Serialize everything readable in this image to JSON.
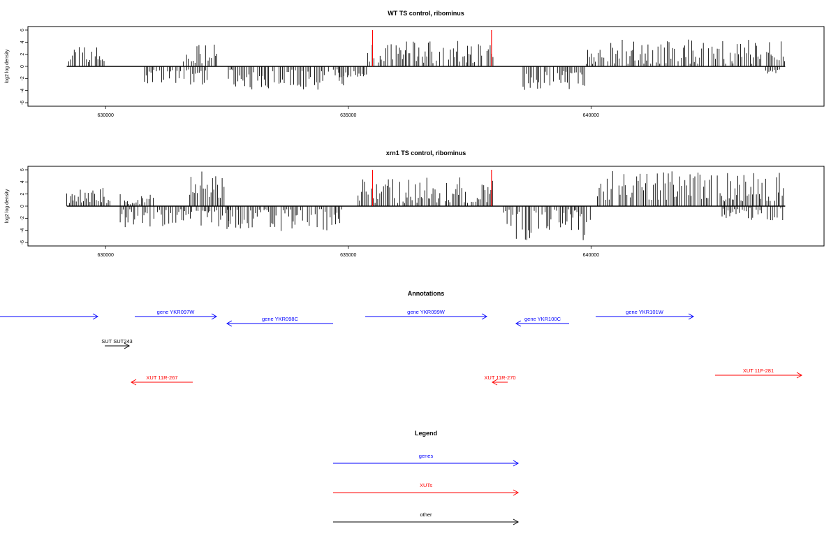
{
  "chart_data": [
    {
      "type": "bar",
      "panel": "coverage",
      "title": "WT TS control, ribominus",
      "ylabel": "log2 log density",
      "ylim": [
        -6,
        6
      ],
      "yticks": [
        "-6",
        "-4",
        "-2",
        "0",
        "2",
        "4",
        "6"
      ],
      "xlim": [
        628400,
        644800
      ],
      "xticks": [
        630000,
        635000,
        640000
      ],
      "xtick_labels": [
        "630000",
        "635000",
        "640000"
      ],
      "bar_color": "#000000",
      "marker_color": "#ff0000",
      "markers_x": [
        635500,
        637950
      ],
      "segments": [
        {
          "start": 629200,
          "end": 630000,
          "lo": 0.5,
          "hi": 3.5
        },
        {
          "start": 630800,
          "end": 632100,
          "lo": -3.0,
          "hi": -0.5
        },
        {
          "start": 631600,
          "end": 632300,
          "lo": 0.5,
          "hi": 3.7
        },
        {
          "start": 632500,
          "end": 634900,
          "lo": -4.0,
          "hi": -0.5
        },
        {
          "start": 634800,
          "end": 635400,
          "lo": -2.0,
          "hi": 0.8
        },
        {
          "start": 635400,
          "end": 638000,
          "lo": 0.5,
          "hi": 4.2
        },
        {
          "start": 638600,
          "end": 639900,
          "lo": -4.0,
          "hi": -0.8
        },
        {
          "start": 639900,
          "end": 644000,
          "lo": 0.4,
          "hi": 4.5
        },
        {
          "start": 643600,
          "end": 643900,
          "lo": -1.2,
          "hi": 0.5
        }
      ]
    },
    {
      "type": "bar",
      "panel": "coverage",
      "title": "xrn1 TS control, ribominus",
      "ylabel": "log2 log density",
      "ylim": [
        -6,
        6
      ],
      "yticks": [
        "-6",
        "-4",
        "-2",
        "0",
        "2",
        "4",
        "6"
      ],
      "xlim": [
        628400,
        644800
      ],
      "xticks": [
        630000,
        635000,
        640000
      ],
      "xtick_labels": [
        "630000",
        "635000",
        "640000"
      ],
      "bar_color": "#000000",
      "marker_color": "#ff0000",
      "markers_x": [
        635500,
        637950
      ],
      "segments": [
        {
          "start": 629200,
          "end": 630100,
          "lo": 0.5,
          "hi": 3.3
        },
        {
          "start": 630300,
          "end": 632600,
          "lo": -3.5,
          "hi": -0.5
        },
        {
          "start": 630300,
          "end": 631000,
          "lo": 0.3,
          "hi": 2.0
        },
        {
          "start": 631700,
          "end": 632500,
          "lo": 1.0,
          "hi": 6.0
        },
        {
          "start": 632500,
          "end": 634900,
          "lo": -4.2,
          "hi": -0.5
        },
        {
          "start": 635200,
          "end": 638000,
          "lo": 0.5,
          "hi": 5.0
        },
        {
          "start": 638200,
          "end": 640000,
          "lo": -5.8,
          "hi": -0.5
        },
        {
          "start": 640100,
          "end": 642500,
          "lo": 1.0,
          "hi": 5.8
        },
        {
          "start": 642600,
          "end": 644000,
          "lo": 0.8,
          "hi": 5.5
        },
        {
          "start": 642700,
          "end": 644000,
          "lo": -2.5,
          "hi": -0.3
        }
      ]
    }
  ],
  "annotations": {
    "title": "Annotations",
    "items": [
      {
        "name": "",
        "color": "#0000ff",
        "x1": 0,
        "x2": 140,
        "row": 0,
        "dir": "right",
        "label": ""
      },
      {
        "name": "gene-ykr097w",
        "color": "#0000ff",
        "x1": 193,
        "x2": 310,
        "row": 0,
        "dir": "right",
        "label": "gene YKR097W"
      },
      {
        "name": "gene-ykr098c",
        "color": "#0000ff",
        "x1": 325,
        "x2": 477,
        "row": 1,
        "dir": "left",
        "label": "gene YKR098C"
      },
      {
        "name": "gene-ykr099w",
        "color": "#0000ff",
        "x1": 523,
        "x2": 697,
        "row": 0,
        "dir": "right",
        "label": "gene YKR099W"
      },
      {
        "name": "gene-ykr100c",
        "color": "#0000ff",
        "x1": 739,
        "x2": 815,
        "row": 1,
        "dir": "left",
        "label": "gene YKR100C"
      },
      {
        "name": "gene-ykr101w",
        "color": "#0000ff",
        "x1": 853,
        "x2": 993,
        "row": 0,
        "dir": "right",
        "label": "gene YKR101W"
      },
      {
        "name": "sut243",
        "color": "#000000",
        "x1": 150,
        "x2": 185,
        "row": 2,
        "dir": "right",
        "label": "SUT SUT243"
      },
      {
        "name": "xut-11r-267",
        "color": "#ff0000",
        "x1": 188,
        "x2": 276,
        "row": 3,
        "dir": "left",
        "label": "XUT 11R-267"
      },
      {
        "name": "xut-11r-270",
        "color": "#ff0000",
        "x1": 705,
        "x2": 727,
        "row": 3,
        "dir": "left",
        "label": "XUT 11R-270"
      },
      {
        "name": "xut-11f-281",
        "color": "#ff0000",
        "x1": 1024,
        "x2": 1148,
        "row": 4,
        "dir": "right",
        "label": "XUT 11F-281"
      }
    ]
  },
  "legend": {
    "title": "Legend",
    "items": [
      {
        "label": "genes",
        "color": "#0000ff"
      },
      {
        "label": "XUTs",
        "color": "#ff0000"
      },
      {
        "label": "other",
        "color": "#000000"
      }
    ]
  }
}
